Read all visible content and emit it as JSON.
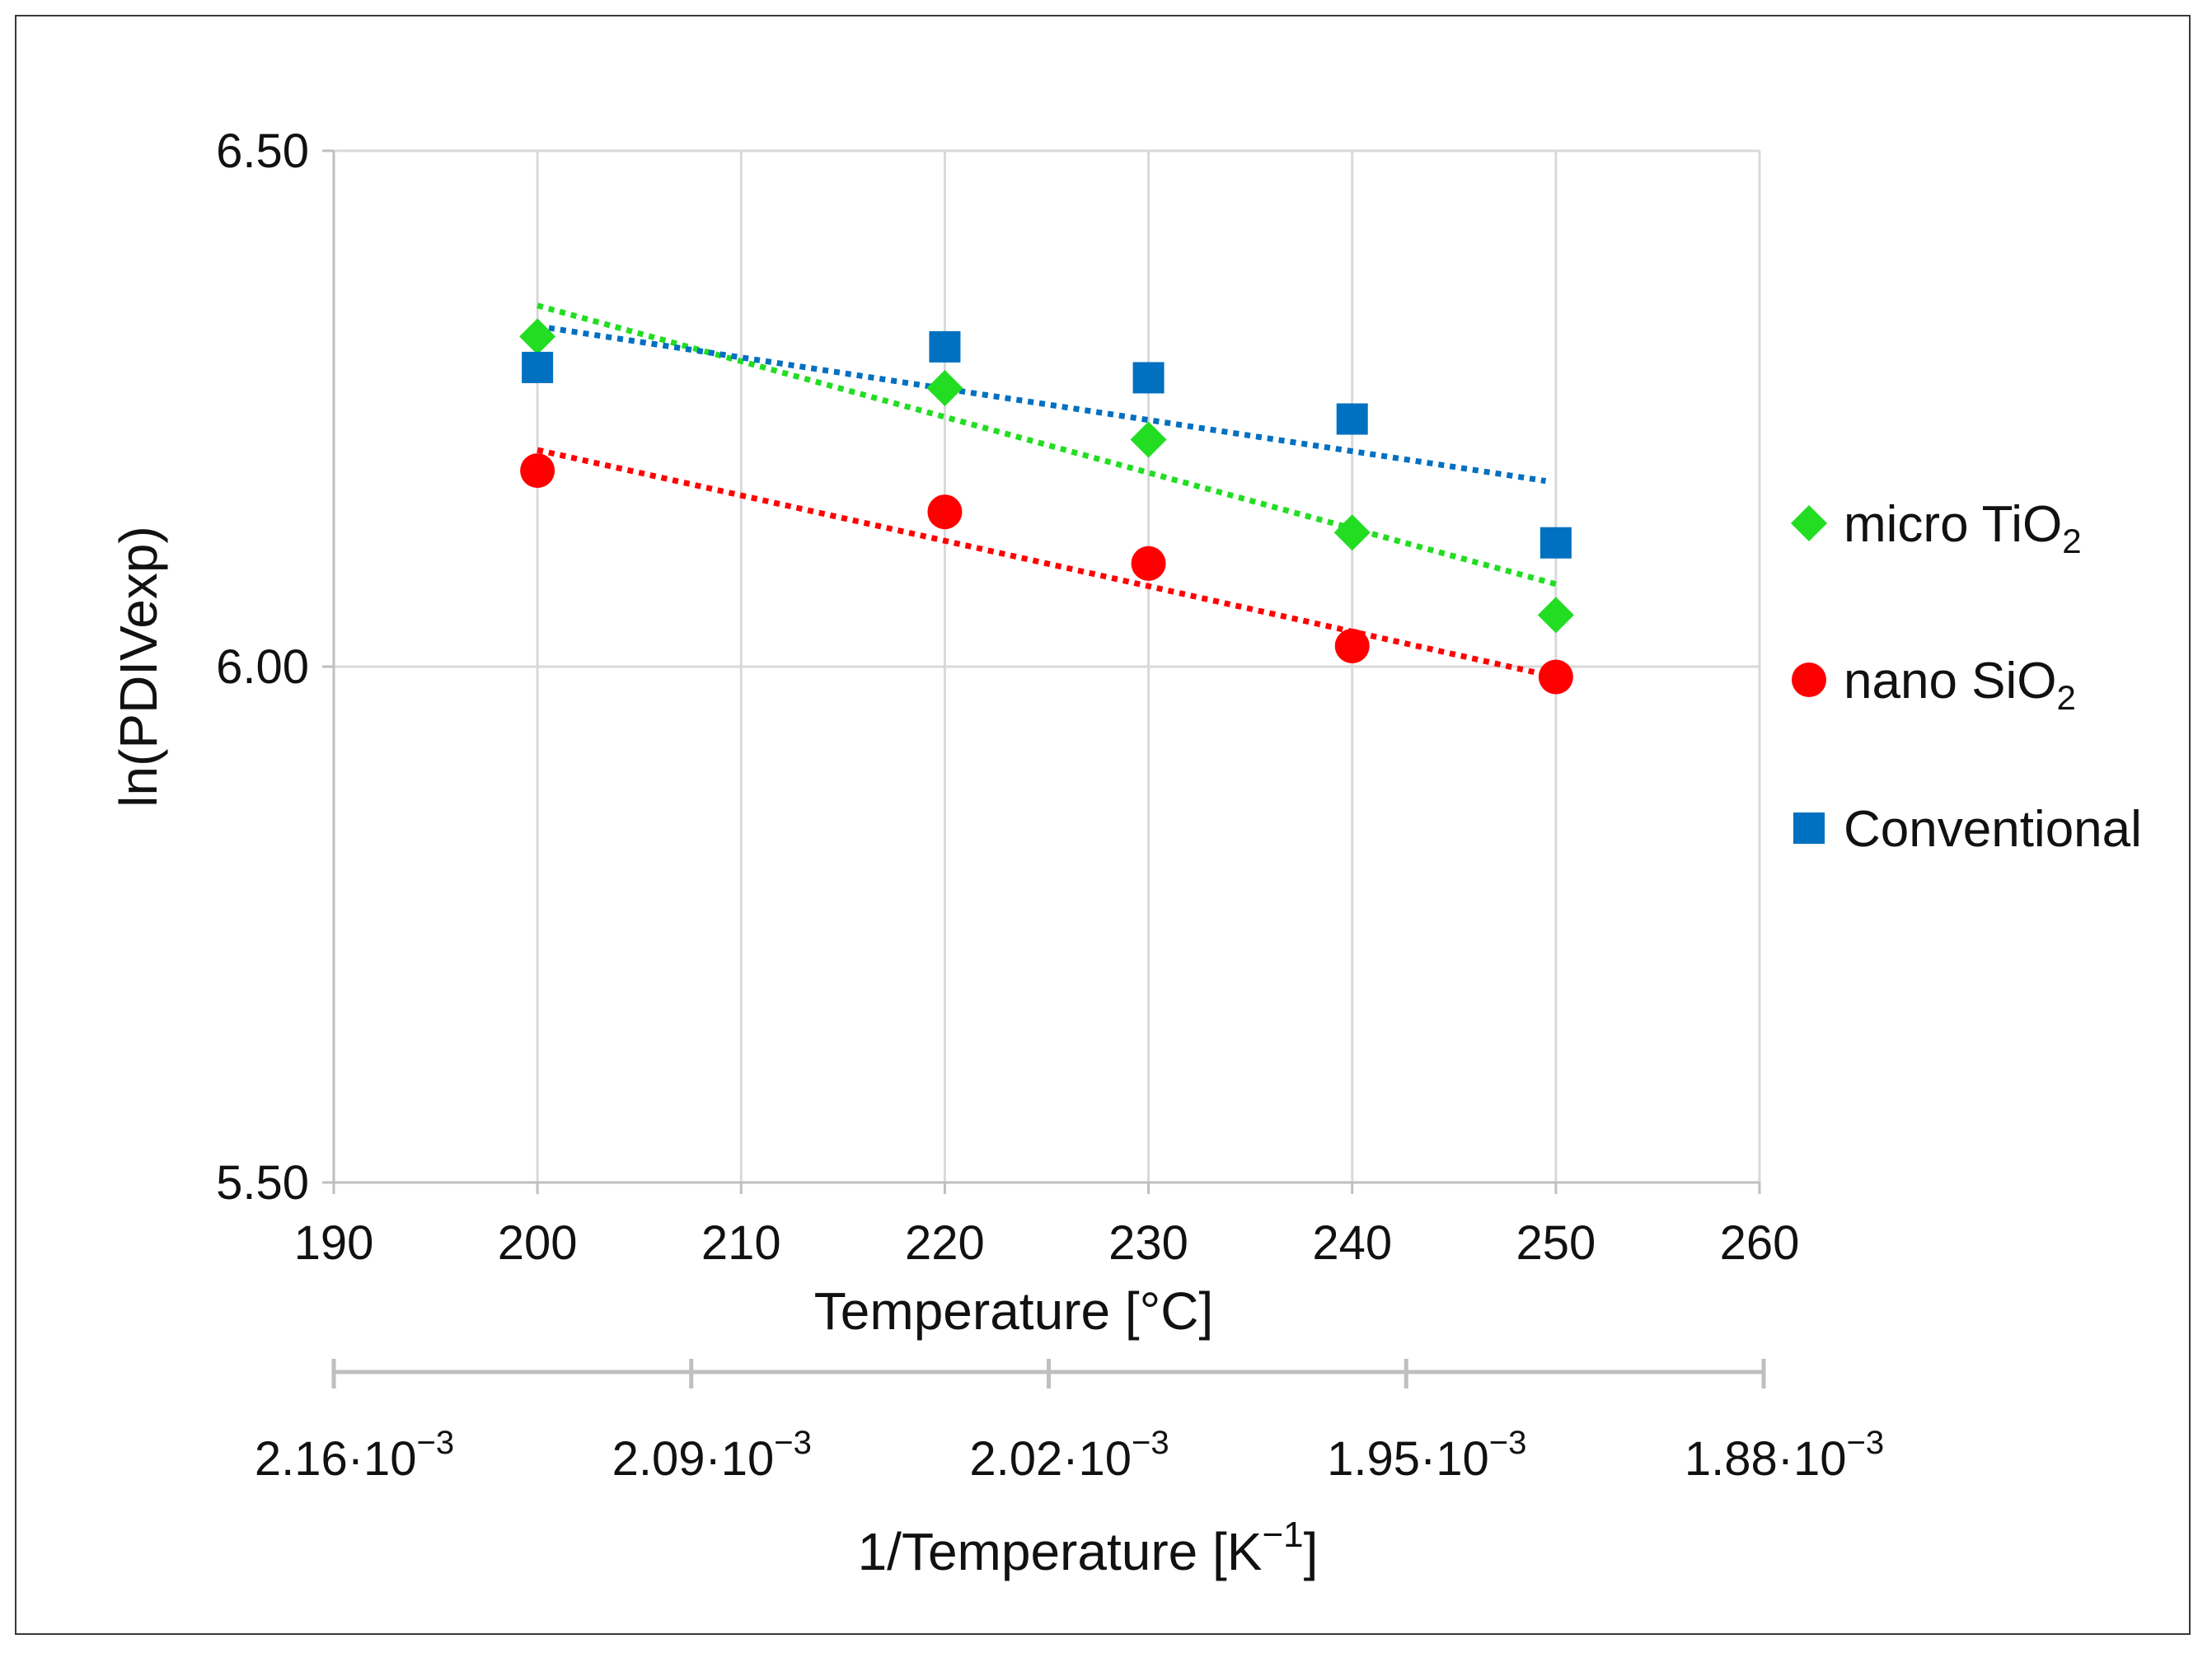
{
  "chart_data": {
    "type": "scatter",
    "title": "",
    "xlabel": "Temperature [°C]",
    "ylabel": "ln(PDIVexp)",
    "xlim": [
      190,
      260
    ],
    "ylim": [
      5.5,
      6.5
    ],
    "x_ticks": [
      190,
      200,
      210,
      220,
      230,
      240,
      250,
      260
    ],
    "x_tick_labels": [
      "190",
      "200",
      "210",
      "220",
      "230",
      "240",
      "250",
      "260"
    ],
    "y_ticks": [
      5.5,
      6.0,
      6.5
    ],
    "y_tick_labels": [
      "5.50",
      "6.00",
      "6.50"
    ],
    "grid": true,
    "legend_position": "right",
    "series": [
      {
        "name": "micro TiO",
        "name_sub": "2",
        "marker": "diamond",
        "color": "#22dd22",
        "x": [
          200,
          220,
          230,
          240,
          250
        ],
        "y": [
          6.32,
          6.27,
          6.22,
          6.13,
          6.05
        ],
        "trendline": {
          "x": [
            200,
            250
          ],
          "y": [
            6.35,
            6.08
          ]
        }
      },
      {
        "name": "nano SiO",
        "name_sub": "2",
        "marker": "circle",
        "color": "#ff0000",
        "x": [
          200,
          220,
          230,
          240,
          250
        ],
        "y": [
          6.19,
          6.15,
          6.1,
          6.02,
          5.99
        ],
        "trendline": {
          "x": [
            200,
            250
          ],
          "y": [
            6.21,
            5.99
          ]
        }
      },
      {
        "name": "Conventional",
        "name_sub": "",
        "marker": "square",
        "color": "#0070c0",
        "x": [
          200,
          220,
          230,
          240,
          250
        ],
        "y": [
          6.29,
          6.31,
          6.28,
          6.24,
          6.12
        ],
        "trendline": {
          "x": [
            200,
            249.5
          ],
          "y": [
            6.33,
            6.18
          ]
        }
      }
    ],
    "secondary_axis": {
      "label": "1/Temperature [K",
      "label_sup": "−1",
      "label_suffix": "]",
      "ticks": [
        {
          "mantissa": "2.16·10",
          "exp": "−3"
        },
        {
          "mantissa": "2.09·10",
          "exp": "−3"
        },
        {
          "mantissa": "2.02·10",
          "exp": "−3"
        },
        {
          "mantissa": "1.95·10",
          "exp": "−3"
        },
        {
          "mantissa": "1.88·10",
          "exp": "−3"
        }
      ]
    }
  }
}
